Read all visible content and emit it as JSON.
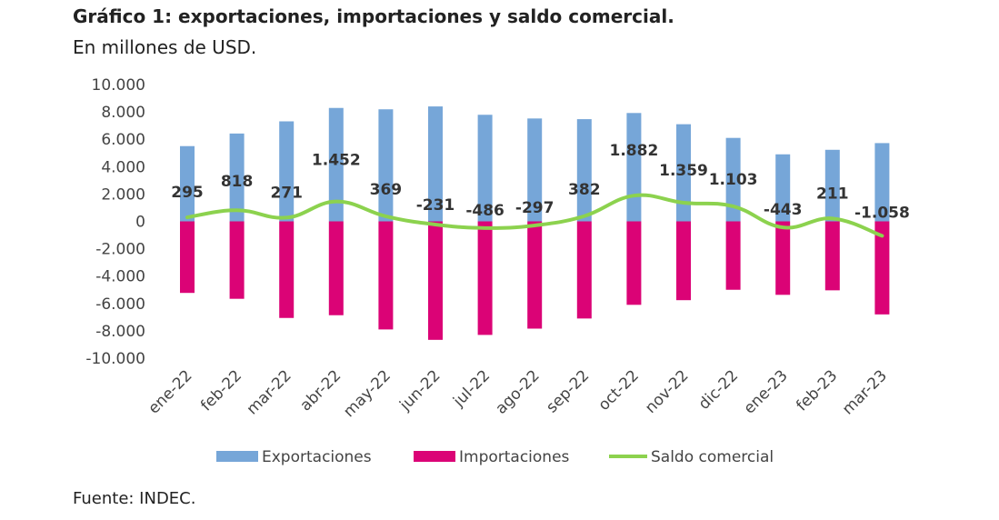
{
  "title": "Gráfico 1: exportaciones, importaciones y saldo comercial.",
  "subtitle": "En millones de USD.",
  "source": "Fuente: INDEC.",
  "chart_data": {
    "type": "bar",
    "categories": [
      "ene-22",
      "feb-22",
      "mar-22",
      "abr-22",
      "may-22",
      "jun-22",
      "jul-22",
      "ago-22",
      "sep-22",
      "oct-22",
      "nov-22",
      "dic-22",
      "ene-23",
      "feb-23",
      "mar-23"
    ],
    "series": [
      {
        "name": "Exportaciones",
        "type": "bar",
        "color": "#76a6d8",
        "values": [
          5500,
          6420,
          7310,
          8290,
          8190,
          8400,
          7790,
          7520,
          7470,
          7920,
          7100,
          6100,
          4900,
          5230,
          5720
        ]
      },
      {
        "name": "Importaciones",
        "type": "bar",
        "color": "#db0376",
        "values": [
          -5230,
          -5660,
          -7060,
          -6860,
          -7900,
          -8660,
          -8300,
          -7840,
          -7100,
          -6100,
          -5760,
          -5000,
          -5370,
          -5040,
          -6800
        ]
      },
      {
        "name": "Saldo comercial",
        "type": "line",
        "color": "#8cd24e",
        "values": [
          295,
          818,
          271,
          1452,
          369,
          -231,
          -486,
          -297,
          382,
          1882,
          1359,
          1103,
          -443,
          211,
          -1058
        ]
      }
    ],
    "data_labels": [
      "295",
      "818",
      "271",
      "1.452",
      "369",
      "-231",
      "-486",
      "-297",
      "382",
      "1.882",
      "1.359",
      "1.103",
      "-443",
      "211",
      "-1.058"
    ],
    "y_ticks": [
      "10.000",
      "8.000",
      "6.000",
      "4.000",
      "2.000",
      "0",
      "-2.000",
      "-4.000",
      "-6.000",
      "-8.000",
      "-10.000"
    ],
    "ylim": [
      -10000,
      10000
    ],
    "grid": false,
    "legend_position": "bottom"
  }
}
